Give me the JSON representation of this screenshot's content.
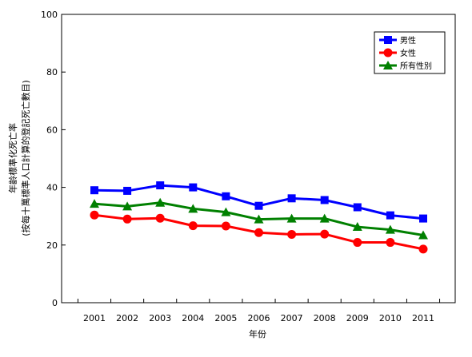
{
  "chart_data": {
    "type": "line",
    "title": "",
    "xlabel": "年份",
    "ylabel_lines": [
      "年齡標準化死亡率",
      "(按每十萬標準人口計算的登記死亡數目)"
    ],
    "categories": [
      "2001",
      "2002",
      "2003",
      "2004",
      "2005",
      "2006",
      "2007",
      "2008",
      "2009",
      "2010",
      "2011"
    ],
    "ylim": [
      0,
      100
    ],
    "yticks": [
      0,
      20,
      40,
      60,
      80,
      100
    ],
    "grid": false,
    "legend_position": "top-right",
    "series": [
      {
        "name": "男性",
        "color": "#0000ff",
        "marker": "square",
        "values": [
          39.0,
          38.8,
          40.7,
          40.0,
          36.9,
          33.6,
          36.2,
          35.6,
          33.1,
          30.3,
          29.2
        ]
      },
      {
        "name": "女性",
        "color": "#ff0000",
        "marker": "circle",
        "values": [
          30.4,
          29.0,
          29.3,
          26.7,
          26.6,
          24.3,
          23.7,
          23.8,
          20.9,
          20.9,
          18.6
        ]
      },
      {
        "name": "所有性別",
        "color": "#008000",
        "marker": "triangle",
        "values": [
          34.3,
          33.4,
          34.7,
          32.6,
          31.4,
          28.9,
          29.2,
          29.2,
          26.3,
          25.3,
          23.4
        ]
      }
    ]
  }
}
